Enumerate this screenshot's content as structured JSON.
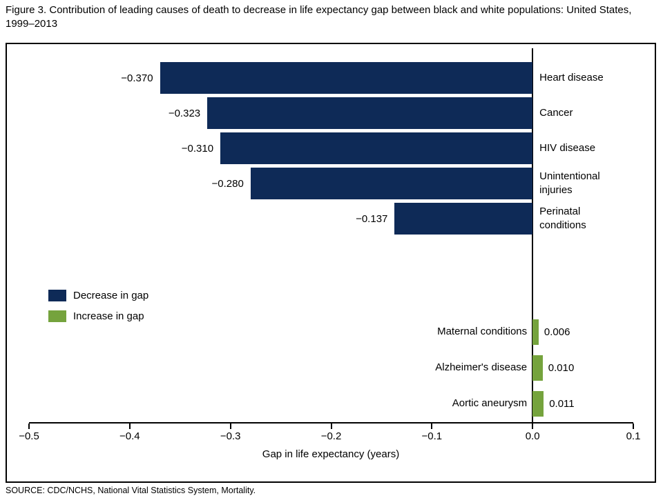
{
  "title": "Figure 3. Contribution of leading causes of death to decrease in life expectancy gap between black and white populations: United States, 1999–2013",
  "source": "SOURCE: CDC/NCHS, National Vital Statistics System, Mortality.",
  "colors": {
    "decrease": "#0e2a57",
    "increase": "#75a33d",
    "axis": "#000000"
  },
  "chart_data": {
    "type": "bar",
    "orientation": "horizontal",
    "title": "Figure 3. Contribution of leading causes of death to decrease in life expectancy gap between black and white populations: United States, 1999–2013",
    "xlabel": "Gap in life expectancy (years)",
    "xlim": [
      -0.5,
      0.1
    ],
    "grid": false,
    "legend_position": "middle-left",
    "xticks": [
      -0.5,
      -0.4,
      -0.3,
      -0.2,
      -0.1,
      0.0,
      0.1
    ],
    "xtick_labels": [
      "−0.5",
      "−0.4",
      "−0.3",
      "−0.2",
      "−0.1",
      "0.0",
      "0.1"
    ],
    "bars": [
      {
        "label": "Heart disease",
        "value": -0.37,
        "value_label": "−0.370",
        "group": "decrease"
      },
      {
        "label": "Cancer",
        "value": -0.323,
        "value_label": "−0.323",
        "group": "decrease"
      },
      {
        "label": "HIV disease",
        "value": -0.31,
        "value_label": "−0.310",
        "group": "decrease"
      },
      {
        "label": "Unintentional injuries",
        "value": -0.28,
        "value_label": "−0.280",
        "group": "decrease"
      },
      {
        "label": "Perinatal conditions",
        "value": -0.137,
        "value_label": "−0.137",
        "group": "decrease"
      },
      {
        "label": "Maternal conditions",
        "value": 0.006,
        "value_label": "0.006",
        "group": "increase"
      },
      {
        "label": "Alzheimer's disease",
        "value": 0.01,
        "value_label": "0.010",
        "group": "increase"
      },
      {
        "label": "Aortic aneurysm",
        "value": 0.011,
        "value_label": "0.011",
        "group": "increase"
      }
    ],
    "legend": [
      {
        "label": "Decrease in gap",
        "group": "decrease"
      },
      {
        "label": "Increase in gap",
        "group": "increase"
      }
    ]
  }
}
